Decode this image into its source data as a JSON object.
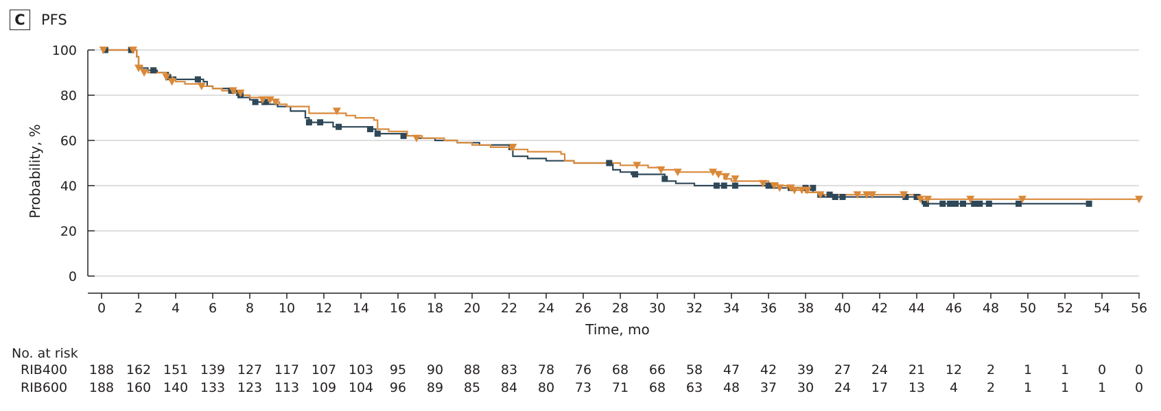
{
  "panel": {
    "letter": "C",
    "title": "PFS"
  },
  "colors": {
    "rib400": "#2f4858",
    "rib600": "#d9893a",
    "grid": "#c9c9c9",
    "axis": "#231f20"
  },
  "chart_data": {
    "type": "line",
    "title": "PFS",
    "xlabel": "Time, mo",
    "ylabel": "Probability, %",
    "xlim": [
      0,
      56
    ],
    "ylim": [
      0,
      100
    ],
    "xticks": [
      0,
      2,
      4,
      6,
      8,
      10,
      12,
      14,
      16,
      18,
      20,
      22,
      24,
      26,
      28,
      30,
      32,
      34,
      36,
      38,
      40,
      42,
      44,
      46,
      48,
      50,
      52,
      54,
      56
    ],
    "yticks": [
      0,
      20,
      40,
      60,
      80,
      100
    ],
    "grid": "horizontal",
    "series": [
      {
        "name": "RIB400",
        "color": "#2f4858",
        "marker": "square",
        "step_points": [
          [
            0,
            100
          ],
          [
            1.7,
            100
          ],
          [
            1.9,
            97
          ],
          [
            2.0,
            92
          ],
          [
            2.5,
            91
          ],
          [
            3.0,
            90
          ],
          [
            3.6,
            88
          ],
          [
            4.0,
            87
          ],
          [
            5.0,
            87
          ],
          [
            5.5,
            86
          ],
          [
            5.7,
            84
          ],
          [
            6.0,
            83
          ],
          [
            7.0,
            82
          ],
          [
            7.3,
            80
          ],
          [
            7.5,
            79
          ],
          [
            8.0,
            78
          ],
          [
            8.4,
            77
          ],
          [
            9.0,
            76
          ],
          [
            9.5,
            75
          ],
          [
            10.2,
            73
          ],
          [
            11.0,
            70
          ],
          [
            11.2,
            68
          ],
          [
            12.5,
            66
          ],
          [
            14.0,
            66
          ],
          [
            14.6,
            65
          ],
          [
            14.8,
            63
          ],
          [
            16.3,
            62
          ],
          [
            17.0,
            61
          ],
          [
            18.0,
            60
          ],
          [
            19.2,
            59
          ],
          [
            20.4,
            58
          ],
          [
            22.0,
            56
          ],
          [
            22.2,
            53
          ],
          [
            23.0,
            52
          ],
          [
            24.0,
            51
          ],
          [
            25.0,
            51
          ],
          [
            25.5,
            50
          ],
          [
            27.2,
            50
          ],
          [
            27.6,
            47
          ],
          [
            28.0,
            46
          ],
          [
            28.6,
            45
          ],
          [
            30.0,
            45
          ],
          [
            30.4,
            42
          ],
          [
            31.0,
            41
          ],
          [
            32.0,
            40
          ],
          [
            34.0,
            40
          ],
          [
            35.5,
            40
          ],
          [
            36.0,
            39
          ],
          [
            38.0,
            39
          ],
          [
            38.4,
            37
          ],
          [
            38.7,
            36
          ],
          [
            39.0,
            35
          ],
          [
            40.0,
            35
          ],
          [
            42.0,
            35
          ],
          [
            44.0,
            35
          ],
          [
            44.3,
            32
          ],
          [
            45.0,
            32
          ],
          [
            47.0,
            32
          ],
          [
            53.2,
            32
          ]
        ],
        "censor_marks": [
          [
            0.2,
            100
          ],
          [
            1.6,
            100
          ],
          [
            2.8,
            91
          ],
          [
            3.6,
            88
          ],
          [
            5.2,
            87
          ],
          [
            7.0,
            82
          ],
          [
            7.5,
            80
          ],
          [
            8.3,
            77
          ],
          [
            8.8,
            77
          ],
          [
            11.2,
            68
          ],
          [
            11.8,
            68
          ],
          [
            12.8,
            66
          ],
          [
            14.5,
            65
          ],
          [
            14.9,
            63
          ],
          [
            16.3,
            62
          ],
          [
            27.4,
            50
          ],
          [
            28.8,
            45
          ],
          [
            30.4,
            43
          ],
          [
            33.2,
            40
          ],
          [
            33.6,
            40
          ],
          [
            34.2,
            40
          ],
          [
            36.0,
            40
          ],
          [
            36.2,
            40
          ],
          [
            37.2,
            39
          ],
          [
            38.0,
            39
          ],
          [
            38.4,
            39
          ],
          [
            38.8,
            36
          ],
          [
            39.3,
            36
          ],
          [
            39.6,
            35
          ],
          [
            40.0,
            35
          ],
          [
            43.4,
            35
          ],
          [
            44.0,
            35
          ],
          [
            44.5,
            32
          ],
          [
            45.4,
            32
          ],
          [
            45.8,
            32
          ],
          [
            46.1,
            32
          ],
          [
            46.5,
            32
          ],
          [
            47.1,
            32
          ],
          [
            47.4,
            32
          ],
          [
            47.9,
            32
          ],
          [
            49.5,
            32
          ],
          [
            53.3,
            32
          ]
        ]
      },
      {
        "name": "RIB600",
        "color": "#d9893a",
        "marker": "triangle-down",
        "step_points": [
          [
            0,
            100
          ],
          [
            1.8,
            100
          ],
          [
            1.9,
            97
          ],
          [
            2.0,
            93
          ],
          [
            2.2,
            91
          ],
          [
            2.5,
            90
          ],
          [
            3.5,
            88
          ],
          [
            3.8,
            87
          ],
          [
            4.0,
            86
          ],
          [
            4.5,
            85
          ],
          [
            5.5,
            84
          ],
          [
            6.0,
            83
          ],
          [
            6.5,
            82
          ],
          [
            7.2,
            81
          ],
          [
            7.5,
            80
          ],
          [
            8.0,
            79
          ],
          [
            9.0,
            78
          ],
          [
            9.3,
            77
          ],
          [
            9.6,
            76
          ],
          [
            10.0,
            75
          ],
          [
            11.2,
            72
          ],
          [
            12.8,
            72
          ],
          [
            13.2,
            71
          ],
          [
            13.7,
            70
          ],
          [
            14.7,
            69
          ],
          [
            14.9,
            65
          ],
          [
            15.5,
            64
          ],
          [
            16.5,
            62
          ],
          [
            17.3,
            61
          ],
          [
            18.5,
            60
          ],
          [
            19.2,
            59
          ],
          [
            20.0,
            58
          ],
          [
            21.0,
            57
          ],
          [
            22.1,
            56
          ],
          [
            23.0,
            55
          ],
          [
            24.8,
            54
          ],
          [
            25.0,
            51
          ],
          [
            25.5,
            50
          ],
          [
            27.6,
            50
          ],
          [
            28.0,
            49
          ],
          [
            29.5,
            48
          ],
          [
            30.2,
            47
          ],
          [
            31.0,
            46
          ],
          [
            32.0,
            46
          ],
          [
            33.2,
            45
          ],
          [
            33.6,
            43
          ],
          [
            34.0,
            42
          ],
          [
            35.5,
            42
          ],
          [
            36.0,
            41
          ],
          [
            36.5,
            40
          ],
          [
            37.0,
            39
          ],
          [
            37.5,
            38
          ],
          [
            38.0,
            37
          ],
          [
            38.7,
            36
          ],
          [
            40.0,
            36
          ],
          [
            42.0,
            36
          ],
          [
            44.0,
            36
          ],
          [
            44.2,
            34
          ],
          [
            45.0,
            34
          ],
          [
            56.0,
            34
          ]
        ],
        "censor_marks": [
          [
            0.1,
            100
          ],
          [
            1.7,
            100
          ],
          [
            2.0,
            92
          ],
          [
            2.3,
            90
          ],
          [
            3.5,
            88
          ],
          [
            3.8,
            86
          ],
          [
            5.4,
            84
          ],
          [
            7.1,
            82
          ],
          [
            7.5,
            81
          ],
          [
            8.7,
            78
          ],
          [
            9.1,
            78
          ],
          [
            9.4,
            77
          ],
          [
            12.7,
            73
          ],
          [
            17.0,
            61
          ],
          [
            22.2,
            57
          ],
          [
            28.9,
            49
          ],
          [
            30.2,
            47
          ],
          [
            31.1,
            46
          ],
          [
            33.0,
            46
          ],
          [
            33.3,
            45
          ],
          [
            33.7,
            44
          ],
          [
            34.2,
            43
          ],
          [
            35.7,
            41
          ],
          [
            36.3,
            40
          ],
          [
            36.6,
            39
          ],
          [
            37.2,
            39
          ],
          [
            37.4,
            38
          ],
          [
            37.8,
            38
          ],
          [
            38.1,
            38
          ],
          [
            38.8,
            36
          ],
          [
            40.8,
            36
          ],
          [
            41.3,
            36
          ],
          [
            41.6,
            36
          ],
          [
            43.3,
            36
          ],
          [
            44.2,
            34
          ],
          [
            44.6,
            34
          ],
          [
            46.9,
            34
          ],
          [
            49.7,
            34
          ],
          [
            56.0,
            34
          ]
        ]
      }
    ],
    "risk_table": {
      "title": "No. at risk",
      "times": [
        0,
        2,
        4,
        6,
        8,
        10,
        12,
        14,
        16,
        18,
        20,
        22,
        24,
        26,
        28,
        30,
        32,
        34,
        36,
        38,
        40,
        42,
        44,
        46,
        48,
        50,
        52,
        54,
        56
      ],
      "rows": [
        {
          "label": "RIB400",
          "counts": [
            "188",
            "162",
            "151",
            "139",
            "127",
            "117",
            "107",
            "103",
            "95",
            "90",
            "88",
            "83",
            "78",
            "76",
            "68",
            "66",
            "58",
            "47",
            "42",
            "39",
            "27",
            "24",
            "21",
            "12",
            "2",
            "1",
            "1",
            "0",
            "0"
          ]
        },
        {
          "label": "RIB600",
          "counts": [
            "188",
            "160",
            "140",
            "133",
            "123",
            "113",
            "109",
            "104",
            "96",
            "89",
            "85",
            "84",
            "80",
            "73",
            "71",
            "68",
            "63",
            "48",
            "37",
            "30",
            "24",
            "17",
            "13",
            "4",
            "2",
            "1",
            "1",
            "1",
            "0"
          ]
        }
      ]
    }
  }
}
